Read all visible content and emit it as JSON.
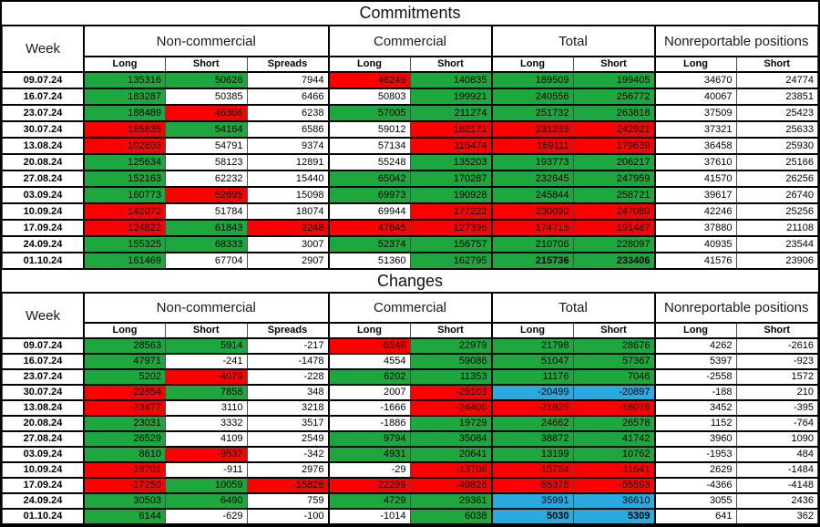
{
  "colors": {
    "green": "#1ea73e",
    "red": "#fe0000",
    "blue": "#29abe2",
    "grid": "#000000"
  },
  "chart_data": [
    {
      "type": "table",
      "title": "Commitments",
      "week_header": "Week",
      "groups": [
        {
          "label": "Non-commercial",
          "span": 3
        },
        {
          "label": "Commercial",
          "span": 2
        },
        {
          "label": "Total",
          "span": 2
        },
        {
          "label": "Nonreportable positions",
          "span": 2
        }
      ],
      "subheaders": [
        "Long",
        "Short",
        "Spreads",
        "Long",
        "Short",
        "Long",
        "Short",
        "Long",
        "Short"
      ],
      "color_legend": {
        "g": "green",
        "r": "red",
        "b": "blue",
        "w": "white"
      },
      "rows": [
        {
          "week": "09.07.24",
          "cells": [
            [
              "135316",
              "g"
            ],
            [
              "50626",
              "g"
            ],
            [
              "7944",
              "w"
            ],
            [
              "46249",
              "r"
            ],
            [
              "140835",
              "g"
            ],
            [
              "189509",
              "g"
            ],
            [
              "199405",
              "g"
            ],
            [
              "34670",
              "w"
            ],
            [
              "24774",
              "w"
            ]
          ]
        },
        {
          "week": "16.07.24",
          "cells": [
            [
              "183287",
              "g"
            ],
            [
              "50385",
              "w"
            ],
            [
              "6466",
              "w"
            ],
            [
              "50803",
              "w"
            ],
            [
              "199921",
              "g"
            ],
            [
              "240556",
              "g"
            ],
            [
              "256772",
              "g"
            ],
            [
              "40067",
              "w"
            ],
            [
              "23851",
              "w"
            ]
          ]
        },
        {
          "week": "23.07.24",
          "cells": [
            [
              "188489",
              "g"
            ],
            [
              "46306",
              "r"
            ],
            [
              "6238",
              "w"
            ],
            [
              "57005",
              "g"
            ],
            [
              "211274",
              "g"
            ],
            [
              "251732",
              "g"
            ],
            [
              "263818",
              "g"
            ],
            [
              "37509",
              "w"
            ],
            [
              "25423",
              "w"
            ]
          ]
        },
        {
          "week": "30.07.24",
          "cells": [
            [
              "165635",
              "r"
            ],
            [
              "54164",
              "g"
            ],
            [
              "6586",
              "w"
            ],
            [
              "59012",
              "w"
            ],
            [
              "182171",
              "r"
            ],
            [
              "231233",
              "r"
            ],
            [
              "242921",
              "r"
            ],
            [
              "37321",
              "w"
            ],
            [
              "25633",
              "w"
            ]
          ]
        },
        {
          "week": "13.08.24",
          "cells": [
            [
              "102603",
              "r"
            ],
            [
              "54791",
              "w"
            ],
            [
              "9374",
              "w"
            ],
            [
              "57134",
              "w"
            ],
            [
              "115474",
              "r"
            ],
            [
              "169111",
              "r"
            ],
            [
              "179639",
              "r"
            ],
            [
              "36458",
              "w"
            ],
            [
              "25930",
              "w"
            ]
          ]
        },
        {
          "week": "20.08.24",
          "cells": [
            [
              "125634",
              "g"
            ],
            [
              "58123",
              "w"
            ],
            [
              "12891",
              "w"
            ],
            [
              "55248",
              "w"
            ],
            [
              "135203",
              "g"
            ],
            [
              "193773",
              "g"
            ],
            [
              "206217",
              "g"
            ],
            [
              "37610",
              "w"
            ],
            [
              "25166",
              "w"
            ]
          ]
        },
        {
          "week": "27.08.24",
          "cells": [
            [
              "152163",
              "g"
            ],
            [
              "62232",
              "w"
            ],
            [
              "15440",
              "w"
            ],
            [
              "65042",
              "g"
            ],
            [
              "170287",
              "g"
            ],
            [
              "232645",
              "g"
            ],
            [
              "247959",
              "g"
            ],
            [
              "41570",
              "w"
            ],
            [
              "26256",
              "w"
            ]
          ]
        },
        {
          "week": "03.09.24",
          "cells": [
            [
              "160773",
              "g"
            ],
            [
              "52695",
              "r"
            ],
            [
              "15098",
              "w"
            ],
            [
              "69973",
              "g"
            ],
            [
              "190928",
              "g"
            ],
            [
              "245844",
              "g"
            ],
            [
              "258721",
              "g"
            ],
            [
              "39617",
              "w"
            ],
            [
              "26740",
              "w"
            ]
          ]
        },
        {
          "week": "10.09.24",
          "cells": [
            [
              "142072",
              "r"
            ],
            [
              "51784",
              "w"
            ],
            [
              "18074",
              "w"
            ],
            [
              "69944",
              "w"
            ],
            [
              "177222",
              "r"
            ],
            [
              "230090",
              "r"
            ],
            [
              "247080",
              "r"
            ],
            [
              "42246",
              "w"
            ],
            [
              "25256",
              "w"
            ]
          ]
        },
        {
          "week": "17.09.24",
          "cells": [
            [
              "124822",
              "r"
            ],
            [
              "61843",
              "g"
            ],
            [
              "2248",
              "r"
            ],
            [
              "47645",
              "r"
            ],
            [
              "127396",
              "r"
            ],
            [
              "174715",
              "r"
            ],
            [
              "191487",
              "r"
            ],
            [
              "37880",
              "w"
            ],
            [
              "21108",
              "w"
            ]
          ]
        },
        {
          "week": "24.09.24",
          "cells": [
            [
              "155325",
              "g"
            ],
            [
              "68333",
              "g"
            ],
            [
              "3007",
              "w"
            ],
            [
              "52374",
              "g"
            ],
            [
              "156757",
              "g"
            ],
            [
              "210706",
              "g"
            ],
            [
              "228097",
              "g"
            ],
            [
              "40935",
              "w"
            ],
            [
              "23544",
              "w"
            ]
          ]
        },
        {
          "week": "01.10.24",
          "cells": [
            [
              "161469",
              "g"
            ],
            [
              "67704",
              "w"
            ],
            [
              "2907",
              "w"
            ],
            [
              "51360",
              "w"
            ],
            [
              "162795",
              "g"
            ],
            [
              "215736",
              "g",
              true
            ],
            [
              "233406",
              "g",
              true
            ],
            [
              "41576",
              "w"
            ],
            [
              "23906",
              "w"
            ]
          ]
        }
      ]
    },
    {
      "type": "table",
      "title": "Changes",
      "week_header": "Week",
      "groups": [
        {
          "label": "Non-commercial",
          "span": 3
        },
        {
          "label": "Commercial",
          "span": 2
        },
        {
          "label": "Total",
          "span": 2
        },
        {
          "label": "Nonreportable positions",
          "span": 2
        }
      ],
      "subheaders": [
        "Long",
        "Short",
        "Spreads",
        "Long",
        "Short",
        "Long",
        "Short",
        "Long",
        "Short"
      ],
      "color_legend": {
        "g": "green",
        "r": "red",
        "b": "blue",
        "w": "white"
      },
      "rows": [
        {
          "week": "09.07.24",
          "cells": [
            [
              "28563",
              "g"
            ],
            [
              "5914",
              "g"
            ],
            [
              "-217",
              "w"
            ],
            [
              "-6548",
              "r"
            ],
            [
              "22979",
              "g"
            ],
            [
              "21798",
              "g"
            ],
            [
              "28676",
              "g"
            ],
            [
              "4262",
              "w"
            ],
            [
              "-2616",
              "w"
            ]
          ]
        },
        {
          "week": "16.07.24",
          "cells": [
            [
              "47971",
              "g"
            ],
            [
              "-241",
              "w"
            ],
            [
              "-1478",
              "w"
            ],
            [
              "4554",
              "w"
            ],
            [
              "59086",
              "g"
            ],
            [
              "51047",
              "g"
            ],
            [
              "57367",
              "g"
            ],
            [
              "5397",
              "w"
            ],
            [
              "-923",
              "w"
            ]
          ]
        },
        {
          "week": "23.07.24",
          "cells": [
            [
              "5202",
              "g"
            ],
            [
              "-4079",
              "r"
            ],
            [
              "-228",
              "w"
            ],
            [
              "6202",
              "g"
            ],
            [
              "11353",
              "g"
            ],
            [
              "11176",
              "g"
            ],
            [
              "7046",
              "g"
            ],
            [
              "-2558",
              "w"
            ],
            [
              "1572",
              "w"
            ]
          ]
        },
        {
          "week": "30.07.24",
          "cells": [
            [
              "-22854",
              "r"
            ],
            [
              "7858",
              "g"
            ],
            [
              "348",
              "w"
            ],
            [
              "2007",
              "w"
            ],
            [
              "-29103",
              "r"
            ],
            [
              "-20499",
              "b"
            ],
            [
              "-20897",
              "b"
            ],
            [
              "-188",
              "w"
            ],
            [
              "210",
              "w"
            ]
          ]
        },
        {
          "week": "13.08.24",
          "cells": [
            [
              "-23477",
              "r"
            ],
            [
              "3110",
              "w"
            ],
            [
              "3218",
              "w"
            ],
            [
              "-1666",
              "w"
            ],
            [
              "-24406",
              "r"
            ],
            [
              "-21925",
              "r"
            ],
            [
              "-18078",
              "r"
            ],
            [
              "3452",
              "w"
            ],
            [
              "-395",
              "w"
            ]
          ]
        },
        {
          "week": "20.08.24",
          "cells": [
            [
              "23031",
              "g"
            ],
            [
              "3332",
              "w"
            ],
            [
              "3517",
              "w"
            ],
            [
              "-1886",
              "w"
            ],
            [
              "19729",
              "g"
            ],
            [
              "24662",
              "g"
            ],
            [
              "26578",
              "g"
            ],
            [
              "1152",
              "w"
            ],
            [
              "-764",
              "w"
            ]
          ]
        },
        {
          "week": "27.08.24",
          "cells": [
            [
              "26529",
              "g"
            ],
            [
              "4109",
              "w"
            ],
            [
              "2549",
              "w"
            ],
            [
              "9794",
              "g"
            ],
            [
              "35084",
              "g"
            ],
            [
              "38872",
              "g"
            ],
            [
              "41742",
              "g"
            ],
            [
              "3960",
              "w"
            ],
            [
              "1090",
              "w"
            ]
          ]
        },
        {
          "week": "03.09.24",
          "cells": [
            [
              "8610",
              "g"
            ],
            [
              "-9537",
              "r"
            ],
            [
              "-342",
              "w"
            ],
            [
              "4931",
              "g"
            ],
            [
              "20641",
              "g"
            ],
            [
              "13199",
              "g"
            ],
            [
              "10762",
              "g"
            ],
            [
              "-1953",
              "w"
            ],
            [
              "484",
              "w"
            ]
          ]
        },
        {
          "week": "10.09.24",
          "cells": [
            [
              "-18701",
              "r"
            ],
            [
              "-911",
              "w"
            ],
            [
              "2976",
              "w"
            ],
            [
              "-29",
              "w"
            ],
            [
              "-13706",
              "r"
            ],
            [
              "-15754",
              "r"
            ],
            [
              "-11641",
              "r"
            ],
            [
              "2629",
              "w"
            ],
            [
              "-1484",
              "w"
            ]
          ]
        },
        {
          "week": "17.09.24",
          "cells": [
            [
              "-17250",
              "r"
            ],
            [
              "10059",
              "g"
            ],
            [
              "-15826",
              "r"
            ],
            [
              "-22299",
              "r"
            ],
            [
              "-49826",
              "r"
            ],
            [
              "-55375",
              "r"
            ],
            [
              "-55593",
              "r"
            ],
            [
              "-4366",
              "w"
            ],
            [
              "-4148",
              "w"
            ]
          ]
        },
        {
          "week": "24.09.24",
          "cells": [
            [
              "30503",
              "g"
            ],
            [
              "6490",
              "g"
            ],
            [
              "759",
              "w"
            ],
            [
              "4729",
              "g"
            ],
            [
              "29361",
              "g"
            ],
            [
              "35991",
              "b"
            ],
            [
              "36610",
              "b"
            ],
            [
              "3055",
              "w"
            ],
            [
              "2436",
              "w"
            ]
          ]
        },
        {
          "week": "01.10.24",
          "cells": [
            [
              "6144",
              "g"
            ],
            [
              "-629",
              "w"
            ],
            [
              "-100",
              "w"
            ],
            [
              "-1014",
              "w"
            ],
            [
              "6038",
              "g"
            ],
            [
              "5030",
              "b",
              true
            ],
            [
              "5309",
              "b",
              true
            ],
            [
              "641",
              "w"
            ],
            [
              "362",
              "w"
            ]
          ]
        }
      ]
    }
  ]
}
